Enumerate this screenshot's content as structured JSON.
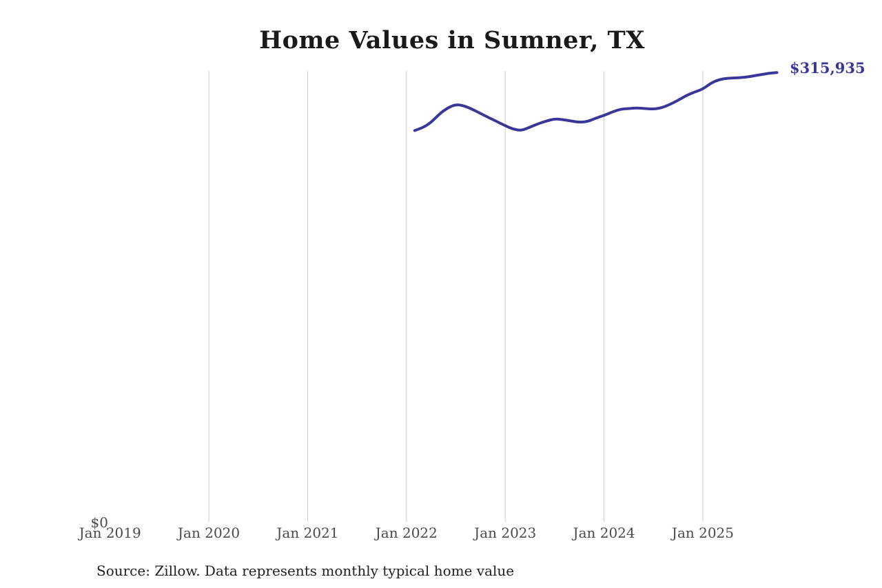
{
  "header": {
    "title": "Home Values in Sumner, TX"
  },
  "annotation": {
    "latest_value_label": "$315,935"
  },
  "axes": {
    "y_zero_label": "$0",
    "x_tick_labels": [
      "Jan 2019",
      "Jan 2020",
      "Jan 2021",
      "Jan 2022",
      "Jan 2023",
      "Jan 2024",
      "Jan 2025"
    ]
  },
  "footer": {
    "source": "Source: Zillow. Data represents monthly typical home value"
  },
  "colors": {
    "line": "#3a3799",
    "latest_value_label": "#3a3799",
    "gridline": "#cccccc",
    "axis_label": "#4a4a4a",
    "title": "#1a1a1a",
    "source_text": "#1f1f1f",
    "background": "#ffffff"
  },
  "chart_data": {
    "type": "line",
    "title": "Home Values in Sumner, TX",
    "series_name": "Monthly typical home value",
    "x_tick_labels": [
      "Jan 2019",
      "Jan 2020",
      "Jan 2021",
      "Jan 2022",
      "Jan 2023",
      "Jan 2024",
      "Jan 2025"
    ],
    "y_tick_labels": [
      "$0"
    ],
    "ylim": [
      0,
      317000
    ],
    "grid": "vertical gridlines at Jan 2020 through Jan 2025 only; no gridline at Jan 2019; no horizontal gridlines",
    "legend": "none",
    "latest_month": "2025-10",
    "latest_value": 315935,
    "months": [
      "2022-02",
      "2022-03",
      "2022-04",
      "2022-05",
      "2022-06",
      "2022-07",
      "2022-08",
      "2022-09",
      "2022-10",
      "2022-11",
      "2022-12",
      "2023-01",
      "2023-02",
      "2023-03",
      "2023-04",
      "2023-05",
      "2023-06",
      "2023-07",
      "2023-08",
      "2023-09",
      "2023-10",
      "2023-11",
      "2023-12",
      "2024-01",
      "2024-02",
      "2024-03",
      "2024-04",
      "2024-05",
      "2024-06",
      "2024-07",
      "2024-08",
      "2024-09",
      "2024-10",
      "2024-11",
      "2024-12",
      "2025-01",
      "2025-02",
      "2025-03",
      "2025-04",
      "2025-05",
      "2025-06",
      "2025-07",
      "2025-08",
      "2025-09",
      "2025-10"
    ],
    "values": [
      275300,
      277200,
      281100,
      286900,
      291200,
      293600,
      292700,
      290200,
      287300,
      284400,
      281600,
      278700,
      276200,
      275300,
      277700,
      280100,
      282000,
      283500,
      283000,
      282000,
      281100,
      281600,
      284000,
      285900,
      288300,
      290300,
      290700,
      291200,
      290700,
      290300,
      291200,
      293600,
      296500,
      299900,
      302300,
      304300,
      308600,
      311000,
      312000,
      312200,
      312500,
      313400,
      314400,
      315400,
      315935
    ]
  }
}
